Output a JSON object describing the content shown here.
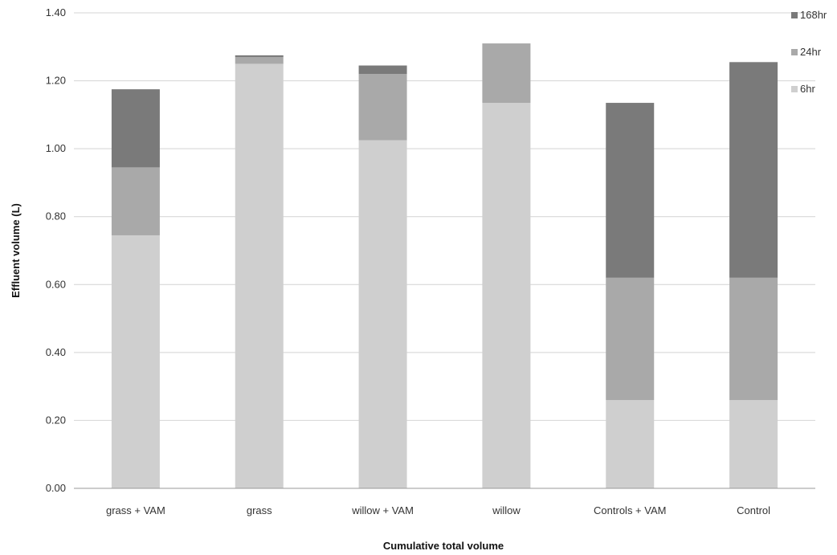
{
  "chart_data": {
    "type": "bar",
    "stacked": true,
    "title": "",
    "xlabel": "Cumulative total volume",
    "ylabel": "Effluent volume (L)",
    "ylim": [
      0,
      1.4
    ],
    "yticks": [
      "0.00",
      "0.20",
      "0.40",
      "0.60",
      "0.80",
      "1.00",
      "1.20",
      "1.40"
    ],
    "grid": true,
    "legend_position": "top-right",
    "categories": [
      "grass + VAM",
      "grass",
      "willow + VAM",
      "willow",
      "Controls + VAM",
      "Control"
    ],
    "series": [
      {
        "name": "6hr",
        "color": "#cfcfcf",
        "values": [
          0.745,
          1.25,
          1.025,
          1.135,
          0.26,
          0.26
        ]
      },
      {
        "name": "24hr",
        "color": "#a9a9a9",
        "values": [
          0.2,
          0.02,
          0.195,
          0.175,
          0.36,
          0.36
        ]
      },
      {
        "name": "168hr",
        "color": "#7a7a7a",
        "values": [
          0.23,
          0.005,
          0.025,
          0.0,
          0.515,
          0.635
        ]
      }
    ]
  }
}
